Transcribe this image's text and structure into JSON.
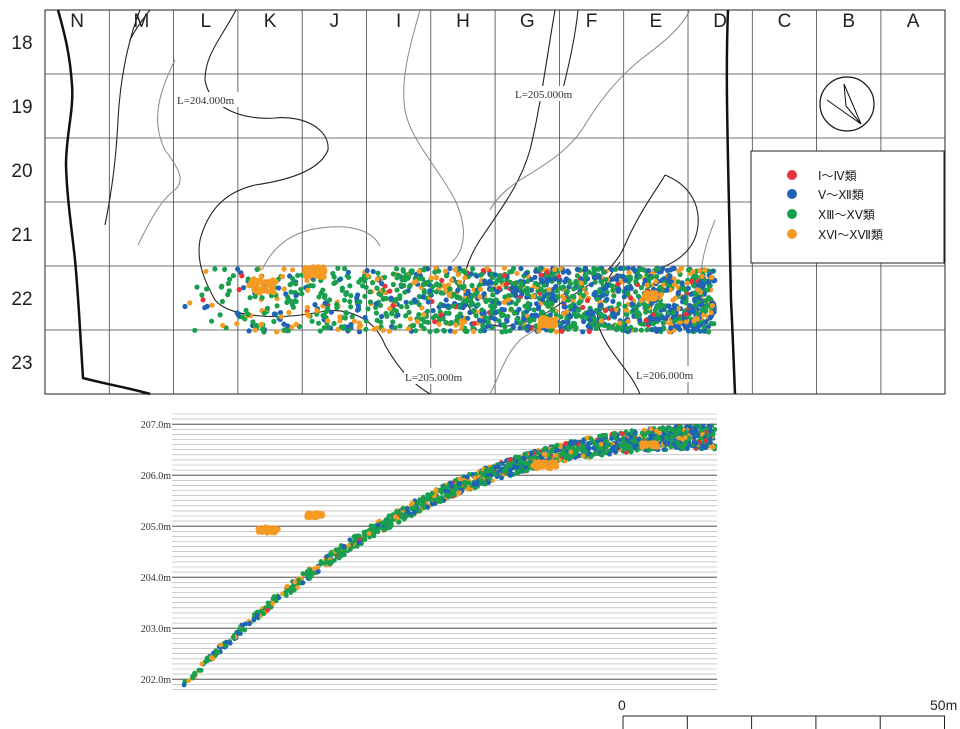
{
  "grid": {
    "columns": [
      "N",
      "M",
      "L",
      "K",
      "J",
      "I",
      "H",
      "G",
      "F",
      "E",
      "D",
      "C",
      "B",
      "A"
    ],
    "rows": [
      "18",
      "19",
      "20",
      "21",
      "22",
      "23"
    ]
  },
  "contour_labels": [
    "L=204.000m",
    "L=205.000m",
    "L=205.000m",
    "L=206.000m"
  ],
  "legend": {
    "items": [
      {
        "label": "Ⅰ～Ⅳ類",
        "color": "#e8323c"
      },
      {
        "label": "Ⅴ～Ⅻ類",
        "color": "#1f63b5"
      },
      {
        "label": "ⅩⅢ～ⅩⅤ類",
        "color": "#1a9f4e"
      },
      {
        "label": "ⅩⅥ～ⅩⅦ類",
        "color": "#f59a23"
      }
    ]
  },
  "section": {
    "ylabels": [
      "207.0m",
      "206.0m",
      "205.0m",
      "204.0m",
      "203.0m",
      "202.0m"
    ]
  },
  "scale": {
    "zero_label": "0",
    "end_label": "50m"
  },
  "colors": {
    "red": "#e8323c",
    "blue": "#1f63b5",
    "green": "#1a9f4e",
    "orange": "#f59a23"
  }
}
